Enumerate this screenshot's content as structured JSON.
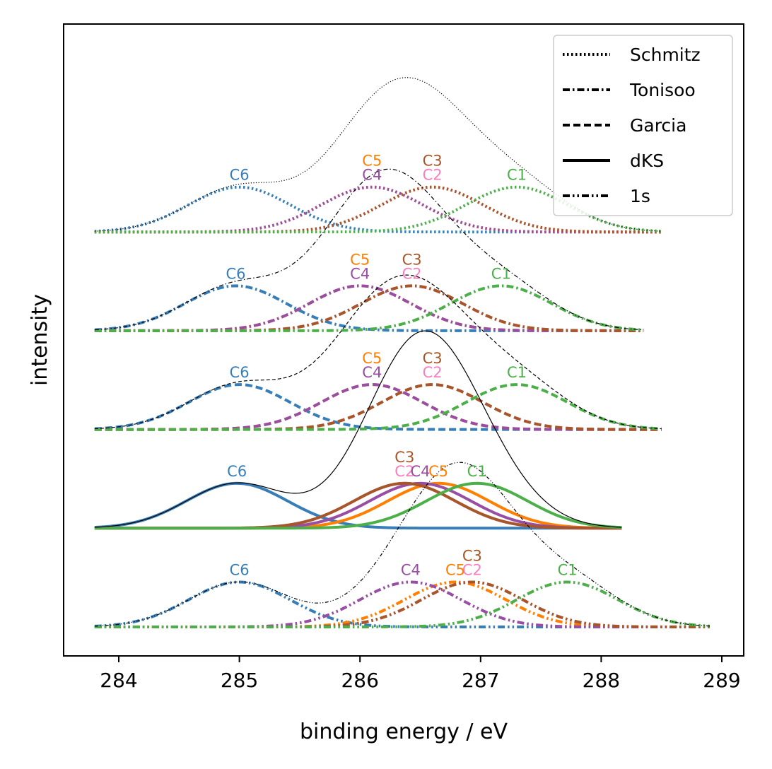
{
  "chart_data": {
    "type": "line",
    "xlabel": "binding energy / eV",
    "ylabel": "intensity",
    "xlim": [
      283.55,
      289.2
    ],
    "xticks": [
      284,
      285,
      286,
      287,
      288,
      289
    ],
    "yticks": [],
    "grid": false,
    "legend_position": "top-right",
    "legend": [
      {
        "label": "Schmitz",
        "style": "dotted"
      },
      {
        "label": "Tonisoo",
        "style": "dashdot"
      },
      {
        "label": "Garcia",
        "style": "dashed"
      },
      {
        "label": "dKS",
        "style": "solid"
      },
      {
        "label": "1s",
        "style": "dashdotdot"
      }
    ],
    "component_colors": {
      "C1": "#4daf4a",
      "C2": "#f781bf",
      "C3": "#a65628",
      "C4": "#984ea3",
      "C5": "#ff7f00",
      "C6": "#377eb8"
    },
    "offset_units": "intensity offsets, top to bottom: Schmitz, Tonisoo, Garcia, dKS, 1s",
    "sets": [
      {
        "name": "Schmitz",
        "style": "dotted",
        "baseline": 4.4,
        "x_range": [
          283.8,
          288.5
        ],
        "components": [
          {
            "label": "C1",
            "center": 287.3,
            "amp": 0.5
          },
          {
            "label": "C2",
            "center": 286.6,
            "amp": 0.5
          },
          {
            "label": "C3",
            "center": 286.6,
            "amp": 0.5
          },
          {
            "label": "C4",
            "center": 286.1,
            "amp": 0.5
          },
          {
            "label": "C5",
            "center": 286.1,
            "amp": 0.5
          },
          {
            "label": "C6",
            "center": 285.0,
            "amp": 0.5
          }
        ]
      },
      {
        "name": "Tonisoo",
        "style": "dashdot",
        "baseline": 3.3,
        "x_range": [
          283.8,
          288.35
        ],
        "components": [
          {
            "label": "C1",
            "center": 287.17,
            "amp": 0.5
          },
          {
            "label": "C2",
            "center": 286.43,
            "amp": 0.5
          },
          {
            "label": "C3",
            "center": 286.43,
            "amp": 0.5
          },
          {
            "label": "C4",
            "center": 286.0,
            "amp": 0.5
          },
          {
            "label": "C5",
            "center": 286.0,
            "amp": 0.5
          },
          {
            "label": "C6",
            "center": 284.97,
            "amp": 0.5
          }
        ]
      },
      {
        "name": "Garcia",
        "style": "dashed",
        "baseline": 2.2,
        "x_range": [
          283.8,
          288.5
        ],
        "components": [
          {
            "label": "C1",
            "center": 287.3,
            "amp": 0.5
          },
          {
            "label": "C2",
            "center": 286.6,
            "amp": 0.5
          },
          {
            "label": "C3",
            "center": 286.6,
            "amp": 0.5
          },
          {
            "label": "C4",
            "center": 286.1,
            "amp": 0.5
          },
          {
            "label": "C5",
            "center": 286.1,
            "amp": 0.5
          },
          {
            "label": "C6",
            "center": 285.0,
            "amp": 0.5
          }
        ]
      },
      {
        "name": "dKS",
        "style": "solid",
        "baseline": 1.1,
        "x_range": [
          283.8,
          288.17
        ],
        "components": [
          {
            "label": "C1",
            "center": 286.97,
            "amp": 0.5
          },
          {
            "label": "C2",
            "center": 286.37,
            "amp": 0.5
          },
          {
            "label": "C3",
            "center": 286.37,
            "amp": 0.5
          },
          {
            "label": "C4",
            "center": 286.5,
            "amp": 0.5
          },
          {
            "label": "C5",
            "center": 286.65,
            "amp": 0.5
          },
          {
            "label": "C6",
            "center": 284.98,
            "amp": 0.5
          }
        ]
      },
      {
        "name": "1s",
        "style": "dashdotdot",
        "baseline": 0.0,
        "x_range": [
          283.8,
          288.9
        ],
        "components": [
          {
            "label": "C1",
            "center": 287.72,
            "amp": 0.5
          },
          {
            "label": "C2",
            "center": 286.93,
            "amp": 0.5
          },
          {
            "label": "C3",
            "center": 286.93,
            "amp": 0.5
          },
          {
            "label": "C4",
            "center": 286.42,
            "amp": 0.5
          },
          {
            "label": "C5",
            "center": 286.79,
            "amp": 0.5
          },
          {
            "label": "C6",
            "center": 285.0,
            "amp": 0.5
          }
        ]
      }
    ]
  }
}
